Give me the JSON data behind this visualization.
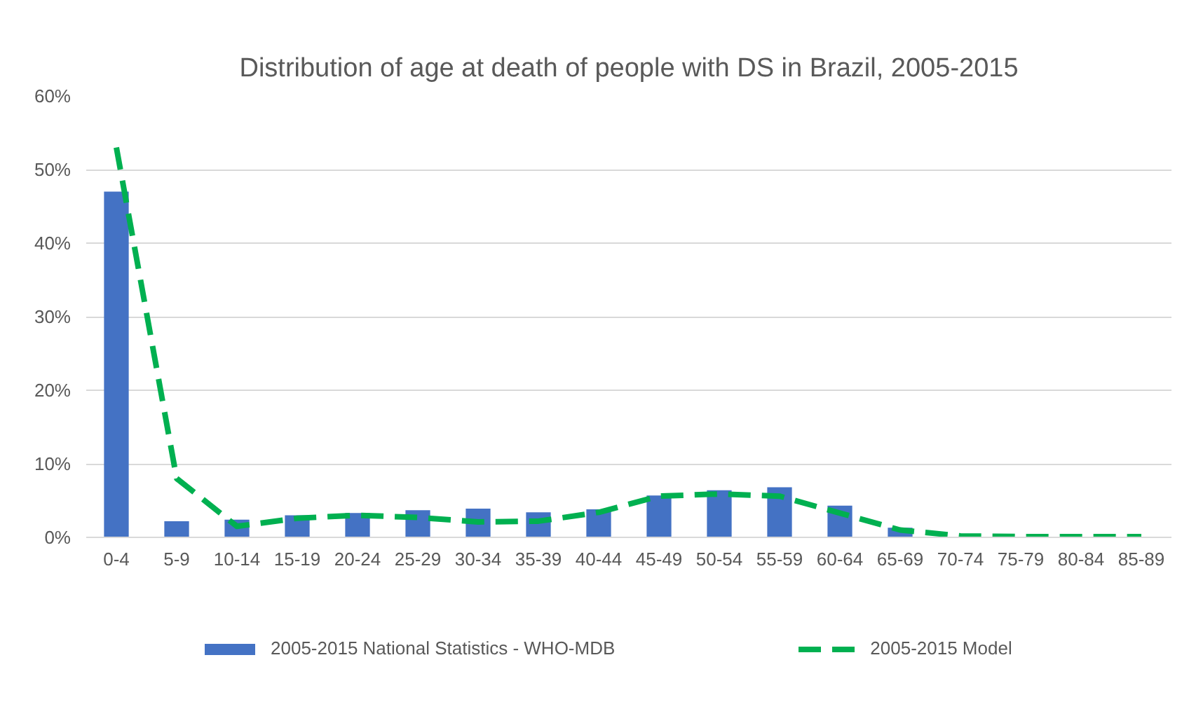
{
  "chart_data": {
    "type": "bar",
    "title": "Distribution of age at death of people with DS in Brazil, 2005-2015",
    "categories": [
      "0-4",
      "5-9",
      "10-14",
      "15-19",
      "20-24",
      "25-29",
      "30-34",
      "35-39",
      "40-44",
      "45-49",
      "50-54",
      "55-59",
      "60-64",
      "65-69",
      "70-74",
      "75-79",
      "80-84",
      "85-89"
    ],
    "series": [
      {
        "name": "2005-2015 National Statistics - WHO-MDB",
        "color": "#4472c4",
        "values": [
          47,
          2.2,
          2.4,
          3.0,
          3.3,
          3.7,
          3.9,
          3.4,
          3.8,
          5.7,
          6.4,
          6.8,
          4.3,
          1.3,
          0,
          0,
          0,
          0
        ]
      },
      {
        "name": "2005-2015 Model",
        "type": "line",
        "color": "#00b050",
        "line_style": "dashed",
        "values": [
          53,
          8,
          1.5,
          2.6,
          3.0,
          2.7,
          2.1,
          2.2,
          3.4,
          5.6,
          5.9,
          5.6,
          3.3,
          1.0,
          0.2,
          0.1,
          0.1,
          0.1
        ]
      }
    ],
    "ylim": [
      0,
      60
    ],
    "yticks": [
      {
        "value": 0,
        "label": "0%"
      },
      {
        "value": 10,
        "label": "10%"
      },
      {
        "value": 20,
        "label": "20%"
      },
      {
        "value": 30,
        "label": "30%"
      },
      {
        "value": 40,
        "label": "40%"
      },
      {
        "value": 50,
        "label": "50%"
      },
      {
        "value": 60,
        "label": "60%"
      }
    ],
    "grid": "y",
    "legend": "bottom"
  }
}
